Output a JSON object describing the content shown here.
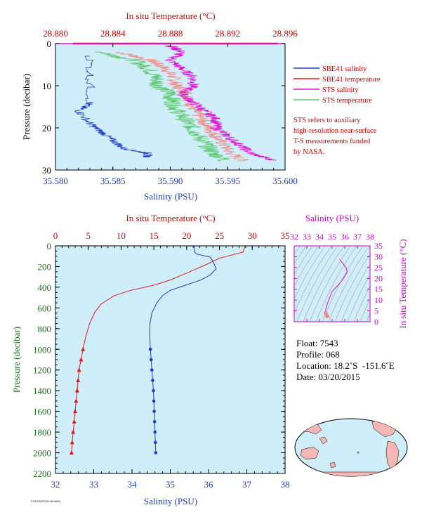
{
  "chart_data": [
    {
      "type": "line",
      "panel": "top",
      "x_bottom_label": "Salinity (PSU)",
      "x_top_label": "In situ Temperature (°C)",
      "ylabel": "Pressure (decibar)",
      "x_bottom_ticks": [
        "35.580",
        "35.585",
        "35.590",
        "35.595",
        "35.600"
      ],
      "x_top_ticks": [
        "28.880",
        "28.884",
        "28.888",
        "28.892",
        "28.896"
      ],
      "y_ticks": [
        "0",
        "10",
        "20",
        "30"
      ],
      "xlim_bottom": [
        35.58,
        35.6
      ],
      "xlim_top": [
        28.88,
        28.896
      ],
      "ylim": [
        30,
        0
      ],
      "series": [
        {
          "name": "SBE41 salinity",
          "color": "#1a3cc8",
          "axis": "salinity",
          "points": [
            [
              35.583,
              3
            ],
            [
              35.583,
              14
            ],
            [
              35.582,
              16
            ],
            [
              35.583,
              19
            ],
            [
              35.584,
              21
            ],
            [
              35.585,
              23
            ],
            [
              35.586,
              25
            ],
            [
              35.588,
              26
            ],
            [
              35.588,
              27
            ]
          ]
        },
        {
          "name": "SBE41 temperature",
          "color": "#e0191b",
          "axis": "temperature",
          "points": [
            [
              28.8812,
              0
            ],
            [
              28.8955,
              0
            ]
          ]
        },
        {
          "name": "STS salinity",
          "color": "#e010d8",
          "axis": "salinity",
          "points": [
            [
              35.59,
              0.5
            ],
            [
              35.591,
              2
            ],
            [
              35.59,
              4
            ],
            [
              35.591,
              6
            ],
            [
              35.592,
              8
            ],
            [
              35.592,
              10
            ],
            [
              35.591,
              12
            ],
            [
              35.592,
              14
            ],
            [
              35.593,
              16
            ],
            [
              35.594,
              18
            ],
            [
              35.594,
              20
            ],
            [
              35.595,
              22
            ],
            [
              35.596,
              24
            ],
            [
              35.597,
              26
            ],
            [
              35.599,
              27.8
            ]
          ]
        },
        {
          "name": "STS temperature",
          "color": "#5cc86c",
          "axis": "temperature",
          "points": [
            [
              28.8832,
              2
            ],
            [
              28.8855,
              4
            ],
            [
              28.8865,
              6
            ],
            [
              28.887,
              8
            ],
            [
              28.8872,
              10
            ],
            [
              28.888,
              12
            ],
            [
              28.8882,
              14
            ],
            [
              28.8885,
              16
            ],
            [
              28.889,
              18
            ],
            [
              28.8895,
              20
            ],
            [
              28.89,
              22
            ],
            [
              28.8905,
              24
            ],
            [
              28.891,
              26
            ],
            [
              28.892,
              28
            ]
          ]
        }
      ],
      "extra_series_color": "#f08a84"
    },
    {
      "type": "line",
      "panel": "bottom",
      "x_bottom_label": "Salinity (PSU)",
      "x_top_label": "In situ Temperature (°C)",
      "ylabel": "Pressure (decibar)",
      "x_bottom_ticks": [
        "32",
        "33",
        "34",
        "35",
        "36",
        "37",
        "38"
      ],
      "x_top_ticks": [
        "0",
        "5",
        "10",
        "15",
        "20",
        "25",
        "30",
        "35"
      ],
      "y_ticks": [
        "0",
        "200",
        "400",
        "600",
        "800",
        "1000",
        "1200",
        "1400",
        "1600",
        "1800",
        "2000",
        "2200"
      ],
      "xlim_bottom": [
        32,
        38
      ],
      "xlim_top": [
        0,
        35
      ],
      "ylim": [
        2200,
        0
      ],
      "series": [
        {
          "name": "Salinity",
          "color": "#1a3cc8",
          "axis": "salinity",
          "points": [
            [
              35.63,
              0
            ],
            [
              35.63,
              60
            ],
            [
              35.7,
              80
            ],
            [
              36.05,
              110
            ],
            [
              36.15,
              180
            ],
            [
              36.2,
              220
            ],
            [
              36.05,
              280
            ],
            [
              35.8,
              330
            ],
            [
              35.4,
              380
            ],
            [
              35.0,
              430
            ],
            [
              34.8,
              480
            ],
            [
              34.65,
              550
            ],
            [
              34.52,
              650
            ],
            [
              34.47,
              750
            ],
            [
              34.46,
              850
            ],
            [
              34.48,
              1000
            ]
          ],
          "markers_from": 1000,
          "marker_points": [
            [
              34.48,
              1000
            ],
            [
              34.5,
              1100
            ],
            [
              34.52,
              1200
            ],
            [
              34.54,
              1300
            ],
            [
              34.56,
              1400
            ],
            [
              34.57,
              1500
            ],
            [
              34.58,
              1600
            ],
            [
              34.59,
              1700
            ],
            [
              34.6,
              1800
            ],
            [
              34.61,
              1900
            ],
            [
              34.62,
              2000
            ]
          ]
        },
        {
          "name": "In situ Temperature",
          "color": "#e0191b",
          "axis": "temperature",
          "points": [
            [
              28.9,
              0
            ],
            [
              28.6,
              60
            ],
            [
              25.0,
              120
            ],
            [
              23.0,
              180
            ],
            [
              20.5,
              250
            ],
            [
              17.5,
              330
            ],
            [
              15.0,
              380
            ],
            [
              11.5,
              430
            ],
            [
              9.0,
              480
            ],
            [
              7.0,
              560
            ],
            [
              6.0,
              640
            ],
            [
              5.2,
              750
            ],
            [
              4.6,
              880
            ],
            [
              4.2,
              1000
            ]
          ],
          "marker_points": [
            [
              4.2,
              1000
            ],
            [
              3.9,
              1100
            ],
            [
              3.6,
              1200
            ],
            [
              3.45,
              1300
            ],
            [
              3.3,
              1400
            ],
            [
              3.15,
              1500
            ],
            [
              3.0,
              1600
            ],
            [
              2.85,
              1700
            ],
            [
              2.7,
              1800
            ],
            [
              2.55,
              1900
            ],
            [
              2.45,
              2000
            ]
          ]
        }
      ]
    },
    {
      "type": "scatter",
      "panel": "ts-diagram",
      "x_top_label": "Salinity (PSU)",
      "y_right_label": "In situ Temperature (°C)",
      "x_ticks": [
        "32",
        "33",
        "34",
        "35",
        "36",
        "37",
        "38"
      ],
      "y_ticks": [
        "0",
        "5",
        "10",
        "15",
        "20",
        "25",
        "30",
        "35"
      ],
      "xlim": [
        32,
        38
      ],
      "ylim": [
        0,
        35
      ],
      "color": "#e010d8",
      "points": [
        [
          35.6,
          28.8
        ],
        [
          36.1,
          25
        ],
        [
          36.2,
          23
        ],
        [
          35.9,
          20
        ],
        [
          35.5,
          17
        ],
        [
          35.0,
          14
        ],
        [
          34.8,
          11
        ],
        [
          34.6,
          8
        ],
        [
          34.5,
          6
        ],
        [
          34.48,
          4
        ],
        [
          34.55,
          3
        ],
        [
          34.62,
          2.5
        ]
      ]
    }
  ],
  "legend": {
    "items": [
      {
        "label": "SBE41 salinity",
        "color": "#1a3cc8"
      },
      {
        "label": "SBE41 temperature",
        "color": "#e0191b"
      },
      {
        "label": "STS salinity",
        "color": "#e010d8"
      },
      {
        "label": "STS temperature",
        "color": "#5cc86c"
      }
    ],
    "note_lines": [
      "STS refers to auxiliary",
      "high-resolution near-surface",
      "T-S measurements funded",
      "by NASA."
    ]
  },
  "info": {
    "float_label": "Float:",
    "float": "7543",
    "profile_label": "Profile:",
    "profile": "068",
    "location_label": "Location:",
    "location": "18.2˚S  -151.6˚E",
    "date_label": "Date:",
    "date": "03/20/2015"
  },
  "footer": "FG2015/07/15 09:08/04",
  "colors": {
    "plot_bg": "#d0eef9",
    "salinity_axis": "#1a3cc8",
    "temperature_axis": "#cc0000",
    "pressure_axis": "#1a6b1a",
    "ts_axis": "#cc00cc"
  }
}
